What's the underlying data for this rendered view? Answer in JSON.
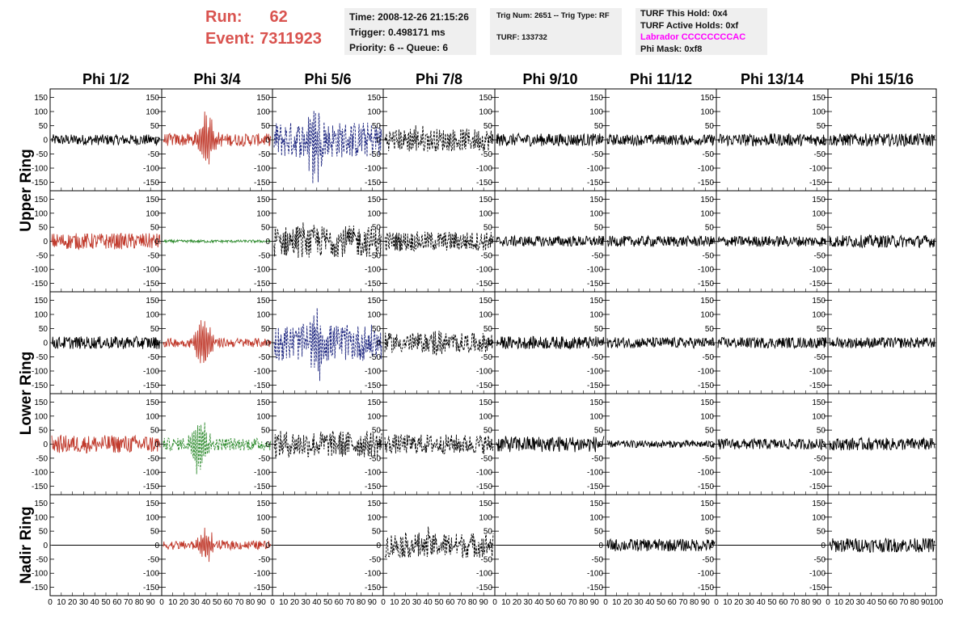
{
  "header": {
    "run_label": "Run:",
    "run_value": "62",
    "event_label": "Event:",
    "event_value": "7311923"
  },
  "info_time": {
    "time": "Time: 2008-12-26 21:15:26",
    "trigger": "Trigger: 0.498171 ms",
    "priority": "Priority: 6 -- Queue: 6"
  },
  "info_trig": {
    "trig": "Trig Num: 2651 -- Trig Type: RF",
    "turf": "TURF: 133732"
  },
  "info_turf": {
    "hold": "TURF This Hold: 0x4",
    "active": "TURF Active Holds: 0xf",
    "labrador": "Labrador CCCCCCCCAC",
    "phimask": "Phi Mask: 0xf8"
  },
  "colors": {
    "run_text": "#d9534f",
    "labrador": "#ff00ff",
    "trace_black": "#000000",
    "trace_red": "#c0392b",
    "trace_blue": "#1a237e",
    "trace_green": "#2e8b2e",
    "info_bg": "#efefef"
  },
  "chart_data": {
    "type": "line",
    "columns": [
      "Phi 1/2",
      "Phi 3/4",
      "Phi 5/6",
      "Phi 7/8",
      "Phi 9/10",
      "Phi 11/12",
      "Phi 13/14",
      "Phi 15/16"
    ],
    "row_groups": [
      {
        "label": "Upper Ring",
        "rows": [
          0,
          1
        ]
      },
      {
        "label": "Lower Ring",
        "rows": [
          2,
          3
        ]
      },
      {
        "label": "Nadir Ring",
        "rows": [
          4
        ]
      }
    ],
    "ylim": [
      -180,
      180
    ],
    "yticks": [
      -150,
      -100,
      -50,
      0,
      50,
      100,
      150
    ],
    "xlim": [
      0,
      100
    ],
    "xtick_labels": [
      "0",
      "10",
      "20",
      "30",
      "40",
      "50",
      "60",
      "70",
      "80",
      "90",
      "100"
    ],
    "panels": [
      [
        {
          "color": "black",
          "style": "solid",
          "amp": 12,
          "burst": 0
        },
        {
          "color": "red",
          "style": "solid",
          "amp": 14,
          "burst": 90,
          "center": 40
        },
        {
          "color": "blue",
          "style": "dash",
          "amp": 40,
          "burst": 140,
          "center": 38
        },
        {
          "color": "black",
          "style": "dash",
          "amp": 25,
          "burst": 20,
          "center": 30
        },
        {
          "color": "black",
          "style": "solid",
          "amp": 14,
          "burst": 0
        },
        {
          "color": "black",
          "style": "solid",
          "amp": 12,
          "burst": 0
        },
        {
          "color": "black",
          "style": "solid",
          "amp": 14,
          "burst": 0
        },
        {
          "color": "black",
          "style": "solid",
          "amp": 14,
          "burst": 0
        }
      ],
      [
        {
          "color": "red",
          "style": "solid",
          "amp": 18,
          "burst": 0
        },
        {
          "color": "green",
          "style": "solid",
          "amp": 3,
          "burst": 0
        },
        {
          "color": "black",
          "style": "dash",
          "amp": 35,
          "burst": 20,
          "center": 30
        },
        {
          "color": "black",
          "style": "dash",
          "amp": 22,
          "burst": 0
        },
        {
          "color": "black",
          "style": "solid",
          "amp": 12,
          "burst": 0
        },
        {
          "color": "black",
          "style": "solid",
          "amp": 12,
          "burst": 0
        },
        {
          "color": "black",
          "style": "solid",
          "amp": 12,
          "burst": 0
        },
        {
          "color": "black",
          "style": "solid",
          "amp": 14,
          "burst": 0
        }
      ],
      [
        {
          "color": "black",
          "style": "solid",
          "amp": 14,
          "burst": 0
        },
        {
          "color": "red",
          "style": "solid",
          "amp": 10,
          "burst": 90,
          "center": 38
        },
        {
          "color": "blue",
          "style": "dash",
          "amp": 40,
          "burst": 70,
          "center": 40
        },
        {
          "color": "black",
          "style": "dash",
          "amp": 22,
          "burst": 20,
          "center": 45
        },
        {
          "color": "black",
          "style": "solid",
          "amp": 14,
          "burst": 0
        },
        {
          "color": "black",
          "style": "solid",
          "amp": 12,
          "burst": 0
        },
        {
          "color": "black",
          "style": "solid",
          "amp": 12,
          "burst": 0
        },
        {
          "color": "black",
          "style": "solid",
          "amp": 12,
          "burst": 0
        }
      ],
      [
        {
          "color": "red",
          "style": "solid",
          "amp": 20,
          "burst": 0
        },
        {
          "color": "green",
          "style": "dash",
          "amp": 14,
          "burst": 110,
          "center": 33
        },
        {
          "color": "black",
          "style": "dash",
          "amp": 30,
          "burst": 0
        },
        {
          "color": "black",
          "style": "dash",
          "amp": 22,
          "burst": 0
        },
        {
          "color": "black",
          "style": "solid",
          "amp": 18,
          "burst": 0
        },
        {
          "color": "black",
          "style": "solid",
          "amp": 8,
          "burst": 0
        },
        {
          "color": "black",
          "style": "solid",
          "amp": 12,
          "burst": 0
        },
        {
          "color": "black",
          "style": "solid",
          "amp": 14,
          "burst": 0
        }
      ],
      [
        {
          "color": "black",
          "style": "flat",
          "amp": 0,
          "burst": 0
        },
        {
          "color": "red",
          "style": "solid",
          "amp": 10,
          "burst": 50,
          "center": 40
        },
        {
          "color": "black",
          "style": "flat",
          "amp": 0,
          "burst": 0
        },
        {
          "color": "black",
          "style": "dash",
          "amp": 28,
          "burst": 25,
          "center": 40
        },
        {
          "color": "black",
          "style": "flat",
          "amp": 0,
          "burst": 0
        },
        {
          "color": "black",
          "style": "solid",
          "amp": 14,
          "burst": 0
        },
        {
          "color": "black",
          "style": "flat",
          "amp": 0,
          "burst": 0
        },
        {
          "color": "black",
          "style": "solid",
          "amp": 16,
          "burst": 0
        }
      ]
    ]
  }
}
